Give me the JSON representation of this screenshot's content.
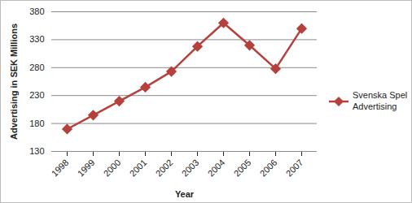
{
  "chart_data": {
    "type": "line",
    "x_label": "Year",
    "y_label": "Advertising in SEK Millions",
    "categories": [
      "1998",
      "1999",
      "2000",
      "2001",
      "2002",
      "2003",
      "2004",
      "2005",
      "2006",
      "2007"
    ],
    "series": [
      {
        "name": "Svenska Spel Advertising",
        "color": "#b5403c",
        "marker": "diamond",
        "values": [
          170,
          195,
          220,
          245,
          273,
          318,
          360,
          320,
          278,
          350
        ]
      }
    ],
    "ylim": [
      130,
      380
    ],
    "yticks": [
      130,
      180,
      230,
      280,
      330,
      380
    ],
    "grid": true,
    "legend": "right"
  }
}
